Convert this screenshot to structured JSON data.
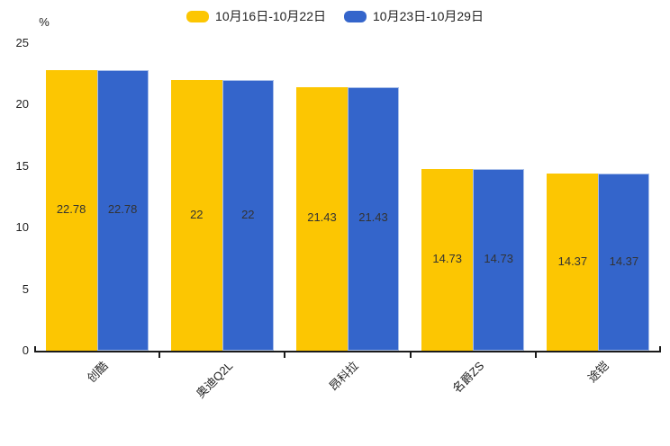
{
  "legend": {
    "items": [
      {
        "label": "10月16日-10月22日",
        "color": "#FCC602"
      },
      {
        "label": "10月23日-10月29日",
        "color": "#3465CB"
      }
    ]
  },
  "y_axis": {
    "unit": "%",
    "tick_labels": [
      "0",
      "5",
      "10",
      "15",
      "20",
      "25"
    ],
    "tick_values": [
      0,
      5,
      10,
      15,
      20,
      25
    ]
  },
  "chart_data": {
    "type": "bar",
    "categories": [
      "创酷",
      "奥迪Q2L",
      "昂科拉",
      "名爵ZS",
      "途铠"
    ],
    "series": [
      {
        "name": "10月16日-10月22日",
        "color": "#FCC602",
        "border": "",
        "values": [
          22.78,
          22,
          21.43,
          14.73,
          14.37
        ],
        "labels": [
          "22.78",
          "22",
          "21.43",
          "14.73",
          "14.37"
        ]
      },
      {
        "name": "10月23日-10月29日",
        "color": "#3465CB",
        "border": "#A9BFE9",
        "values": [
          22.78,
          22,
          21.43,
          14.73,
          14.37
        ],
        "labels": [
          "22.78",
          "22",
          "21.43",
          "14.73",
          "14.37"
        ]
      }
    ],
    "title": "",
    "xlabel": "",
    "ylabel": "%",
    "ylim": [
      0,
      25
    ],
    "grid": false,
    "legend_position": "top-center",
    "value_label_color": "#333333",
    "axis_color": "#1a1a1a"
  }
}
